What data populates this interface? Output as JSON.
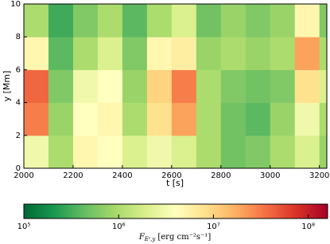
{
  "chart_data": {
    "type": "heatmap",
    "xlabel": "t [s]",
    "ylabel": "y [Mm]",
    "x_edges": [
      2000,
      2100,
      2200,
      2300,
      2400,
      2500,
      2600,
      2700,
      2800,
      2900,
      3000,
      3100,
      3200,
      3230
    ],
    "y_edges": [
      0,
      2,
      4,
      6,
      8,
      10
    ],
    "values": [
      [
        3000000,
        1000000,
        5000000,
        4000000,
        2000000,
        3000000,
        2000000,
        1000000,
        500000,
        600000,
        1000000,
        2000000,
        800000
      ],
      [
        30000000,
        800000,
        4000000,
        5000000,
        1000000,
        8000000,
        20000000,
        1000000,
        500000,
        400000,
        800000,
        3000000,
        1000000
      ],
      [
        40000000,
        600000,
        3000000,
        4000000,
        800000,
        10000000,
        30000000,
        1000000,
        600000,
        500000,
        600000,
        8000000,
        2000000
      ],
      [
        5000000,
        400000,
        1000000,
        2000000,
        600000,
        5000000,
        6000000,
        800000,
        1000000,
        800000,
        1000000,
        20000000,
        1000000
      ],
      [
        1000000,
        300000,
        600000,
        1000000,
        400000,
        1000000,
        2000000,
        500000,
        800000,
        600000,
        800000,
        5000000,
        600000
      ]
    ],
    "xlim": [
      2000,
      3230
    ],
    "xticks": [
      2000,
      2200,
      2400,
      2600,
      2800,
      3000,
      3200
    ],
    "ylim": [
      0,
      10
    ],
    "yticks": [
      0,
      2,
      4,
      6,
      8,
      10
    ],
    "colorbar": {
      "log": true,
      "lim": [
        100000,
        160000000
      ],
      "ticks": [
        {
          "value": 100000,
          "label": "10⁵"
        },
        {
          "value": 1000000,
          "label": "10⁶"
        },
        {
          "value": 10000000,
          "label": "10⁷"
        },
        {
          "value": 100000000,
          "label": "10⁸"
        }
      ],
      "label": {
        "symbol": "F",
        "subscript": "Eᶻ,y",
        "unit": "[erg cm⁻²s⁻¹]"
      }
    },
    "colormap": [
      "#006837",
      "#1a9850",
      "#66bd63",
      "#a6d96a",
      "#d9ef8b",
      "#ffffbf",
      "#fee08b",
      "#fdae61",
      "#f46d43",
      "#d73027",
      "#a50026"
    ]
  }
}
